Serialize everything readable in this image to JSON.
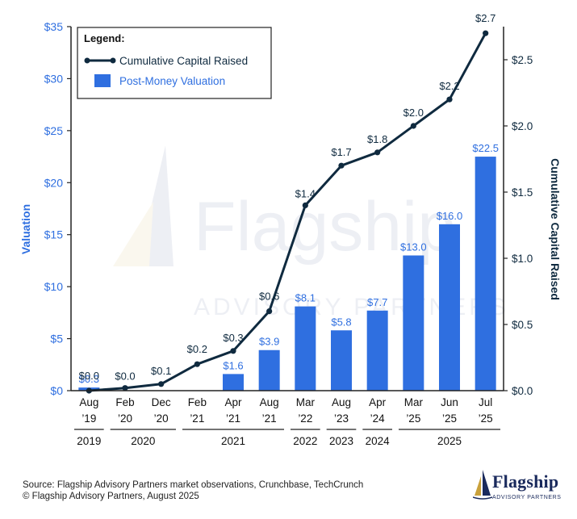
{
  "chart_data": {
    "type": "bar",
    "legend_title": "Legend:",
    "legend_position": "top-left",
    "categories": [
      "Aug '19",
      "Feb '20",
      "Dec '20",
      "Feb '21",
      "Apr '21",
      "Aug '21",
      "Mar '22",
      "Aug '23",
      "Apr '24",
      "Mar '25",
      "Jun '25",
      "Jul '25"
    ],
    "x_tick_lines": [
      [
        "Aug",
        "’19"
      ],
      [
        "Feb",
        "’20"
      ],
      [
        "Dec",
        "’20"
      ],
      [
        "Feb",
        "’21"
      ],
      [
        "Apr",
        "’21"
      ],
      [
        "Aug",
        "’21"
      ],
      [
        "Mar",
        "’22"
      ],
      [
        "Aug",
        "’23"
      ],
      [
        "Apr",
        "’24"
      ],
      [
        "Mar",
        "’25"
      ],
      [
        "Jun",
        "’25"
      ],
      [
        "Jul",
        "’25"
      ]
    ],
    "year_groups": [
      {
        "label": "2019",
        "from": 0,
        "to": 0
      },
      {
        "label": "2020",
        "from": 1,
        "to": 2
      },
      {
        "label": "2021",
        "from": 3,
        "to": 5
      },
      {
        "label": "2022",
        "from": 6,
        "to": 6
      },
      {
        "label": "2023",
        "from": 7,
        "to": 7
      },
      {
        "label": "2024",
        "from": 8,
        "to": 8
      },
      {
        "label": "2025",
        "from": 9,
        "to": 11
      }
    ],
    "series": [
      {
        "name": "Post-Money Valuation",
        "type": "bar",
        "axis": "left",
        "color": "#2f6fe0",
        "values": [
          0.3,
          null,
          null,
          null,
          1.6,
          3.9,
          8.1,
          5.8,
          7.7,
          13.0,
          16.0,
          22.5
        ],
        "labels": [
          "$0.3",
          "",
          "",
          "",
          "$1.6",
          "$3.9",
          "$8.1",
          "$5.8",
          "$7.7",
          "$13.0",
          "$16.0",
          "$22.5"
        ]
      },
      {
        "name": "Cumulative Capital Raised",
        "type": "line",
        "axis": "right",
        "color": "#0f2a3f",
        "values": [
          0.0,
          0.02,
          0.05,
          0.2,
          0.3,
          0.6,
          1.4,
          1.7,
          1.8,
          2.0,
          2.2,
          2.7
        ],
        "labels": [
          "$0.0",
          "$0.0",
          "$0.1",
          "$0.2",
          "$0.3",
          "$0.6",
          "$1.4",
          "$1.7",
          "$1.8",
          "$2.0",
          "$2.2",
          "$2.7"
        ]
      }
    ],
    "left_axis": {
      "label": "Valuation",
      "ylim": [
        0,
        35
      ],
      "ticks": [
        0,
        5,
        10,
        15,
        20,
        25,
        30,
        35
      ],
      "tick_labels": [
        "$0",
        "$5",
        "$10",
        "$15",
        "$20",
        "$25",
        "$30",
        "$35"
      ],
      "color": "#2f6fe0"
    },
    "right_axis": {
      "label": "Cumulative Capital Raised",
      "ylim": [
        0,
        2.75
      ],
      "ticks": [
        0,
        0.5,
        1.0,
        1.5,
        2.0,
        2.5
      ],
      "tick_labels": [
        "$0.0",
        "$0.5",
        "$1.0",
        "$1.5",
        "$2.0",
        "$2.5"
      ],
      "color": "#0f2a3f"
    },
    "grid": false
  },
  "footer": {
    "source": "Source: Flagship Advisory Partners market observations, Crunchbase, TechCrunch",
    "copyright": "© Flagship Advisory Partners, August 2025"
  },
  "logo": {
    "word": "Flagship",
    "sub": "ADVISORY PARTNERS"
  },
  "watermark": {
    "word": "Flagship",
    "sub": "ADVISORY PARTNERS"
  }
}
